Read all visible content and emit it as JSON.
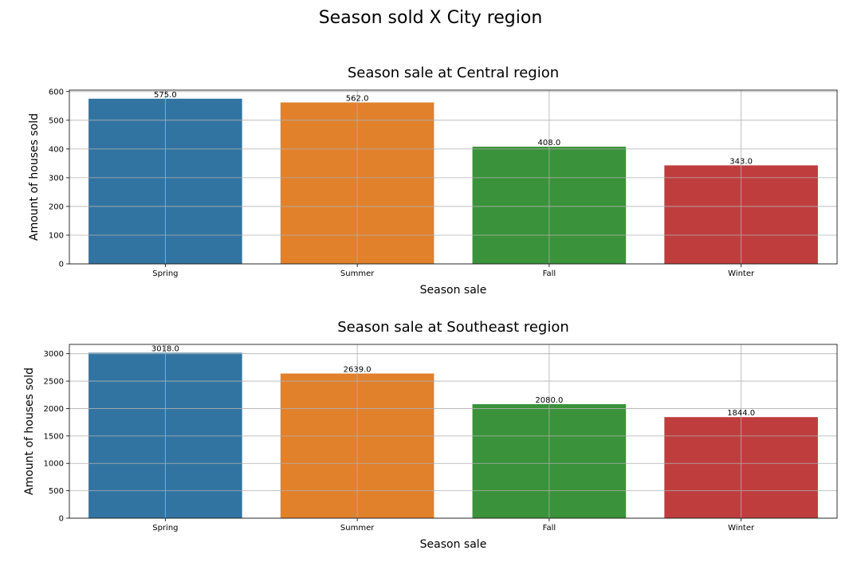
{
  "figure": {
    "suptitle": "Season sold X City region"
  },
  "chart_data": [
    {
      "type": "bar",
      "title": "Season sale at Central region",
      "xlabel": "Season sale",
      "ylabel": "Amount of houses sold",
      "categories": [
        "Spring",
        "Summer",
        "Fall",
        "Winter"
      ],
      "values": [
        575.0,
        562.0,
        408.0,
        343.0
      ],
      "value_labels": [
        "575.0",
        "562.0",
        "408.0",
        "343.0"
      ],
      "colors": [
        "#3274a1",
        "#e1812c",
        "#3a923a",
        "#c03d3e"
      ],
      "ylim": [
        0,
        605
      ],
      "yticks": [
        0,
        100,
        200,
        300,
        400,
        500,
        600
      ],
      "grid": true,
      "legend": "none"
    },
    {
      "type": "bar",
      "title": "Season sale at Southeast region",
      "xlabel": "Season sale",
      "ylabel": "Amount of houses sold",
      "categories": [
        "Spring",
        "Summer",
        "Fall",
        "Winter"
      ],
      "values": [
        3018.0,
        2639.0,
        2080.0,
        1844.0
      ],
      "value_labels": [
        "3018.0",
        "2639.0",
        "2080.0",
        "1844.0"
      ],
      "colors": [
        "#3274a1",
        "#e1812c",
        "#3a923a",
        "#c03d3e"
      ],
      "ylim": [
        0,
        3170
      ],
      "yticks": [
        0,
        500,
        1000,
        1500,
        2000,
        2500,
        3000
      ],
      "grid": true,
      "legend": "none"
    }
  ]
}
